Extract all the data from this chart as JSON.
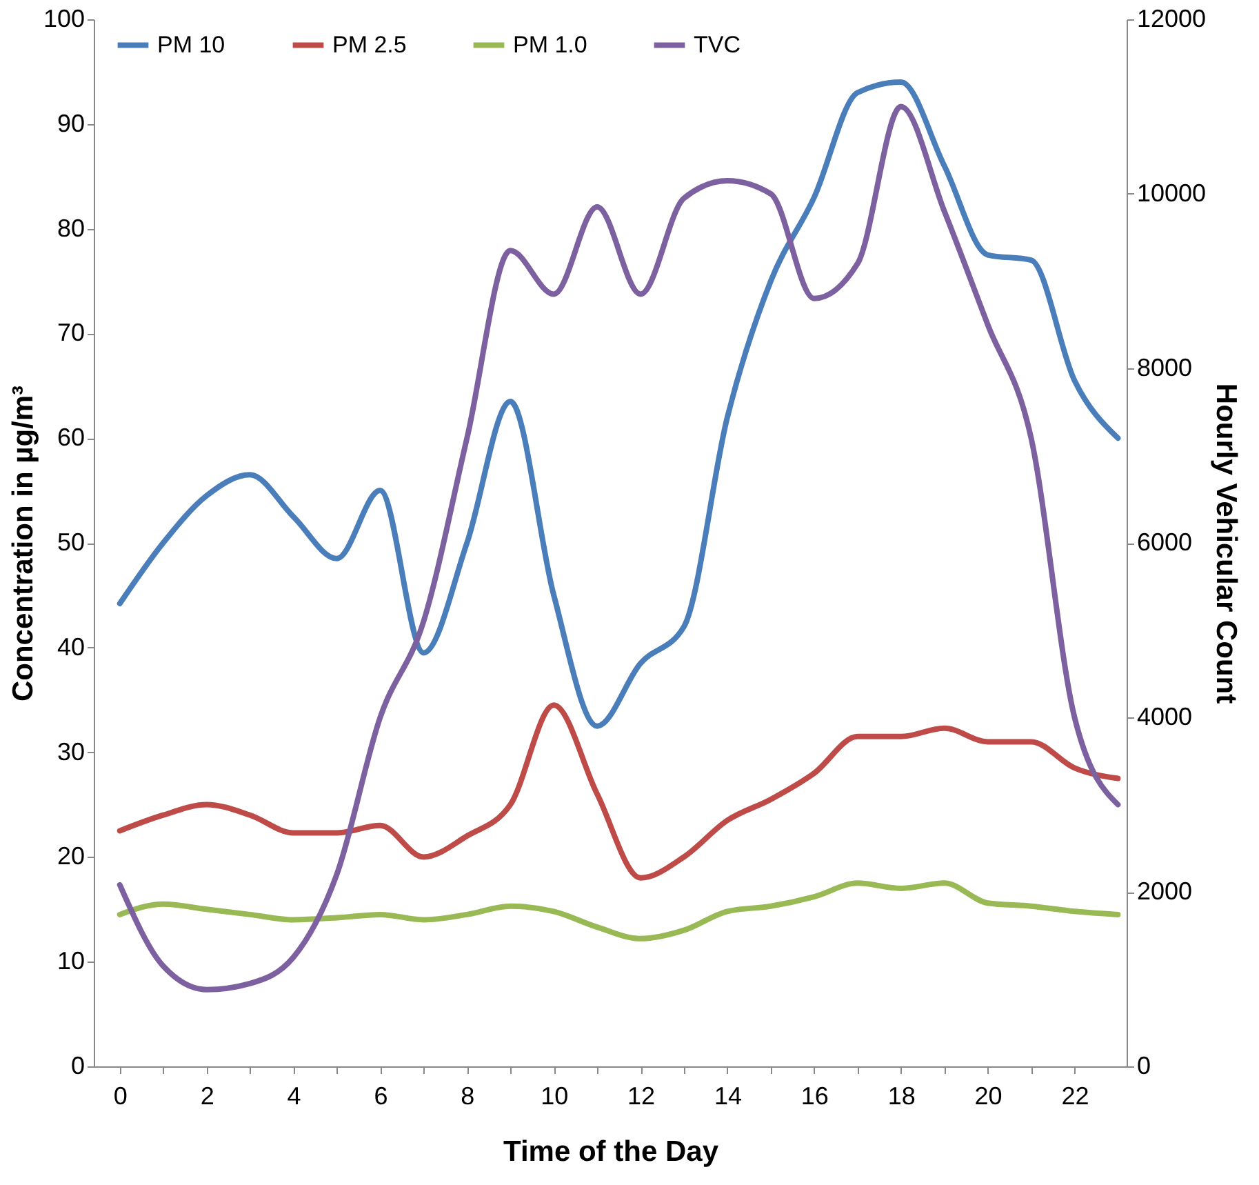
{
  "chart_data": {
    "type": "line",
    "xlabel": "Time of the Day",
    "ylabel": "Concentration in µg/m³",
    "y2label": "Hourly Vehicular Count",
    "x": [
      0,
      1,
      2,
      3,
      4,
      5,
      6,
      7,
      8,
      9,
      10,
      11,
      12,
      13,
      14,
      15,
      16,
      17,
      18,
      19,
      20,
      21,
      22,
      23
    ],
    "series": [
      {
        "name": "PM 10",
        "color": "#4a7ebb",
        "values": [
          44.2,
          50,
          54.5,
          56.5,
          52.5,
          48.5,
          55,
          39.5,
          50,
          63.5,
          45,
          32.5,
          38.5,
          42,
          62,
          75,
          83,
          93,
          94,
          86,
          77.5,
          77,
          65.5,
          60
        ]
      },
      {
        "name": "PM 2.5",
        "color": "#be4b48",
        "values": [
          22.5,
          24,
          25,
          24,
          22.3,
          22.3,
          23,
          20,
          22,
          25,
          34.5,
          26,
          18,
          20,
          23.5,
          25.5,
          28,
          31.5,
          31.5,
          32.3,
          31,
          31,
          28.5,
          27.5
        ]
      },
      {
        "name": "PM 1.0",
        "color": "#98b954",
        "values": [
          14.5,
          15.5,
          15,
          14.5,
          14,
          14.2,
          14.5,
          14,
          14.5,
          15.3,
          14.8,
          13.3,
          12.2,
          13,
          14.8,
          15.3,
          16.2,
          17.5,
          17,
          17.5,
          15.6,
          15.3,
          14.8,
          14.5
        ]
      },
      {
        "name": "TVC",
        "color": "#7d60a0",
        "axis": "y2",
        "values": [
          2080,
          1150,
          880,
          950,
          1250,
          2200,
          4000,
          5100,
          7200,
          9350,
          8850,
          9850,
          8850,
          9950,
          10150,
          10000,
          8800,
          9200,
          11000,
          9800,
          8500,
          7200,
          4000,
          3000
        ]
      }
    ],
    "xlim": [
      -0.6,
      23.2
    ],
    "xticks": [
      0,
      {
        "value": 1,
        "label": null
      },
      2,
      {
        "value": 3,
        "label": null
      },
      4,
      {
        "value": 5,
        "label": null
      },
      6,
      {
        "value": 7,
        "label": null
      },
      8,
      {
        "value": 9,
        "label": null
      },
      10,
      {
        "value": 11,
        "label": null
      },
      12,
      {
        "value": 13,
        "label": null
      },
      14,
      {
        "value": 15,
        "label": null
      },
      16,
      {
        "value": 17,
        "label": null
      },
      18,
      {
        "value": 19,
        "label": null
      },
      20,
      {
        "value": 21,
        "label": null
      },
      22
    ],
    "ylim": [
      0,
      100
    ],
    "yticks": [
      0,
      10,
      20,
      30,
      40,
      50,
      60,
      70,
      80,
      90,
      100
    ],
    "y2lim": [
      0,
      12000
    ],
    "y2ticks": [
      0,
      2000,
      4000,
      6000,
      8000,
      10000,
      12000
    ],
    "grid": false,
    "legend": "top",
    "marker": "none",
    "line_style": "solid"
  }
}
